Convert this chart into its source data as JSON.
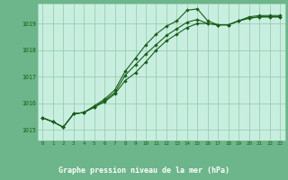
{
  "title": "Graphe pression niveau de la mer (hPa)",
  "outer_color": "#6db58a",
  "plot_bg_color": "#c8eee0",
  "grid_color": "#90c8a8",
  "line_color": "#1a5e1a",
  "label_color": "#1a5e1a",
  "title_bg_color": "#4a9a6a",
  "xlim": [
    -0.5,
    23.5
  ],
  "ylim": [
    1014.6,
    1019.75
  ],
  "yticks": [
    1015,
    1016,
    1017,
    1018,
    1019
  ],
  "xticks": [
    0,
    1,
    2,
    3,
    4,
    5,
    6,
    7,
    8,
    9,
    10,
    11,
    12,
    13,
    14,
    15,
    16,
    17,
    18,
    19,
    20,
    21,
    22,
    23
  ],
  "series1_y": [
    1015.45,
    1015.3,
    1015.1,
    1015.6,
    1015.65,
    1015.85,
    1016.05,
    1016.35,
    1016.85,
    1017.15,
    1017.55,
    1018.0,
    1018.35,
    1018.6,
    1018.85,
    1019.0,
    1019.0,
    1018.95,
    1018.95,
    1019.1,
    1019.2,
    1019.25,
    1019.25,
    1019.25
  ],
  "series2_y": [
    1015.45,
    1015.3,
    1015.1,
    1015.6,
    1015.65,
    1015.85,
    1016.1,
    1016.4,
    1017.05,
    1017.45,
    1017.85,
    1018.2,
    1018.55,
    1018.8,
    1019.05,
    1019.15,
    1019.0,
    1018.95,
    1018.95,
    1019.1,
    1019.2,
    1019.25,
    1019.25,
    1019.25
  ],
  "series3_y": [
    1015.45,
    1015.3,
    1015.1,
    1015.6,
    1015.65,
    1015.9,
    1016.15,
    1016.5,
    1017.2,
    1017.7,
    1018.2,
    1018.6,
    1018.9,
    1019.1,
    1019.5,
    1019.55,
    1019.1,
    1018.95,
    1018.95,
    1019.1,
    1019.25,
    1019.3,
    1019.3,
    1019.3
  ]
}
